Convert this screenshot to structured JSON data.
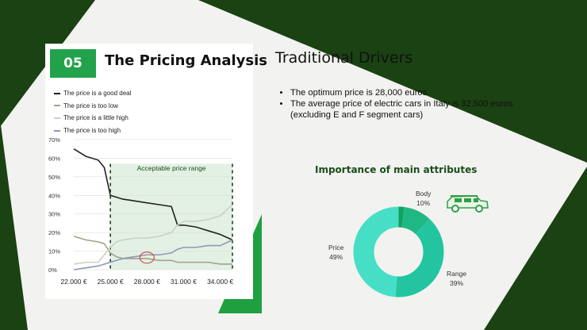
{
  "slide": {
    "badge": "05",
    "card_title": "The Pricing Analysis",
    "title": "Traditional Drivers",
    "bullets": [
      "The optimum price is 28,000 euros",
      "The average price of electric cars in Italy is 32,500 euros (excluding E and F segment cars)"
    ],
    "donut_title": "Importance of main attributes",
    "colors": {
      "dark_green": "#1b4d1b",
      "accent_green": "#22a24a"
    }
  },
  "icons": [
    "car-icon"
  ],
  "chart_data": [
    {
      "type": "line",
      "x": [
        22000,
        23000,
        24000,
        24500,
        25000,
        25500,
        26000,
        27000,
        28000,
        29000,
        30000,
        30500,
        31000,
        32000,
        33000,
        34000,
        35000
      ],
      "series": [
        {
          "name": "The price is a good deal",
          "color": "#222222",
          "values": [
            65,
            61,
            59,
            55,
            40,
            39,
            38,
            37,
            36,
            35,
            34,
            24,
            24,
            23,
            21,
            19,
            16
          ]
        },
        {
          "name": "The price is too low",
          "color": "#a3a28c",
          "values": [
            18,
            16,
            15,
            14,
            9,
            7,
            6,
            6,
            6,
            5,
            5,
            4,
            4,
            4,
            4,
            3,
            3
          ]
        },
        {
          "name": "The price is a little high",
          "color": "#c9d1c3",
          "values": [
            3,
            4,
            4,
            8,
            12,
            15,
            16,
            17,
            17,
            18,
            20,
            24,
            26,
            26,
            27,
            29,
            35
          ]
        },
        {
          "name": "The price is too high",
          "color": "#8e98b8",
          "values": [
            0,
            1,
            2,
            3,
            4,
            5,
            6,
            7,
            8,
            8,
            9,
            11,
            12,
            12,
            13,
            13,
            16
          ]
        }
      ],
      "x_ticks": [
        "22.000 €",
        "25.000 €",
        "28.000 €",
        "31.000 €",
        "34.000 €"
      ],
      "y_ticks": [
        "0%",
        "10%",
        "20%",
        "30%",
        "40%",
        "50%",
        "60%",
        "70%"
      ],
      "ylim": [
        0,
        70
      ],
      "xlim": [
        22000,
        35000
      ],
      "annotation": {
        "label": "Acceptable price range",
        "from": 25000,
        "to": 35000
      },
      "circle_marker_at": 28000,
      "grid": true,
      "legend": "top-left"
    },
    {
      "type": "pie",
      "title": "Importance of main attributes",
      "slices": [
        {
          "label": "Body",
          "percent": "10%",
          "value": 10,
          "color": "#1fb884"
        },
        {
          "label": "Range",
          "percent": "39%",
          "value": 39,
          "color": "#22c5a0"
        },
        {
          "label": "Price",
          "percent": "49%",
          "value": 49,
          "color": "#46dfc6"
        },
        {
          "label": "",
          "percent": "",
          "value": 2,
          "color": "#12a05e"
        }
      ]
    }
  ]
}
